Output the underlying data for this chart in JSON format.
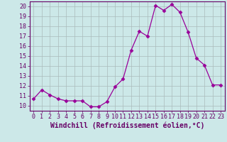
{
  "x": [
    0,
    1,
    2,
    3,
    4,
    5,
    6,
    7,
    8,
    9,
    10,
    11,
    12,
    13,
    14,
    15,
    16,
    17,
    18,
    19,
    20,
    21,
    22,
    23
  ],
  "y": [
    10.7,
    11.6,
    11.1,
    10.7,
    10.5,
    10.5,
    10.5,
    9.9,
    9.9,
    10.4,
    11.9,
    12.7,
    15.6,
    17.5,
    17.0,
    20.1,
    19.6,
    20.2,
    19.4,
    17.4,
    14.8,
    14.1,
    12.1,
    12.1
  ],
  "line_color": "#990099",
  "marker": "D",
  "marker_size": 2.5,
  "xlabel": "Windchill (Refroidissement éolien,°C)",
  "xlim": [
    -0.5,
    23.5
  ],
  "ylim": [
    9.5,
    20.5
  ],
  "yticks": [
    10,
    11,
    12,
    13,
    14,
    15,
    16,
    17,
    18,
    19,
    20
  ],
  "xticks": [
    0,
    1,
    2,
    3,
    4,
    5,
    6,
    7,
    8,
    9,
    10,
    11,
    12,
    13,
    14,
    15,
    16,
    17,
    18,
    19,
    20,
    21,
    22,
    23
  ],
  "bg_color": "#cce8e8",
  "grid_color": "#aabbbb",
  "tick_fontsize": 6,
  "xlabel_fontsize": 7
}
